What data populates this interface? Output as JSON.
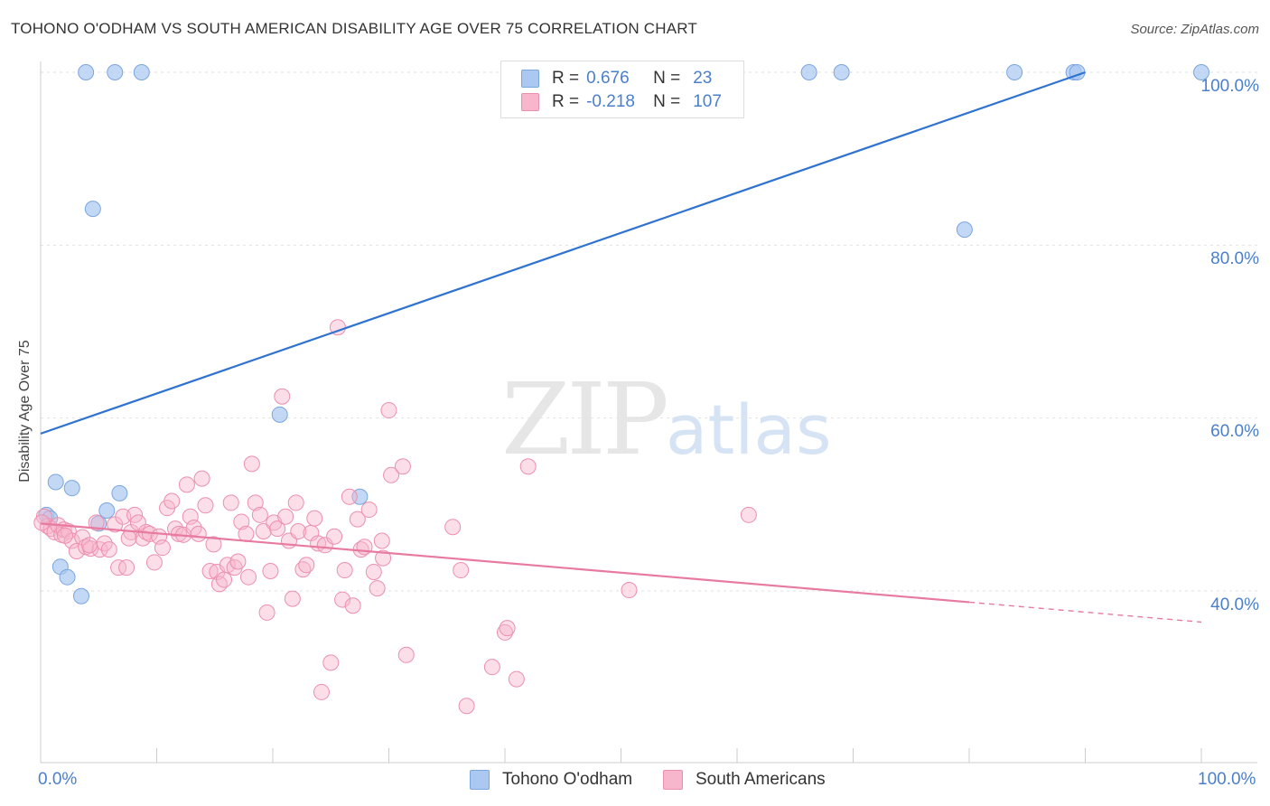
{
  "title": "TOHONO O'ODHAM VS SOUTH AMERICAN DISABILITY AGE OVER 75 CORRELATION CHART",
  "source": "Source: ZipAtlas.com",
  "watermark": {
    "zip": "ZIP",
    "atlas": "atlas"
  },
  "legend": {
    "rows": [
      {
        "r_label": "R =",
        "r_value": "0.676",
        "n_label": "N =",
        "n_value": "23",
        "color": "#aac8f0"
      },
      {
        "r_label": "R =",
        "r_value": "-0.218",
        "n_label": "N =",
        "n_value": "107",
        "color": "#f7b6cb"
      }
    ]
  },
  "chart_data": {
    "type": "scatter",
    "title": "TOHONO O'ODHAM VS SOUTH AMERICAN DISABILITY AGE OVER 75 CORRELATION CHART",
    "ylabel": "Disability Age Over 75",
    "xlabel": "",
    "xlim": [
      0,
      100
    ],
    "ylim": [
      20,
      100
    ],
    "y_ticks": [
      "100.0%",
      "80.0%",
      "60.0%",
      "40.0%"
    ],
    "x_ticks": [
      "0.0%",
      "100.0%"
    ],
    "grid": "horizontal dashed",
    "legend_position": "top-center",
    "series": [
      {
        "name": "Tohono O'odham",
        "color": "#aac8f0",
        "stroke": "#7aa6e0",
        "line_color": "#2f72d0",
        "trend": {
          "x": [
            0,
            90
          ],
          "y": [
            58.2,
            100
          ]
        },
        "points": [
          {
            "x": 3.9,
            "y": 100
          },
          {
            "x": 6.4,
            "y": 100
          },
          {
            "x": 8.7,
            "y": 100
          },
          {
            "x": 66.2,
            "y": 100
          },
          {
            "x": 69.0,
            "y": 100
          },
          {
            "x": 83.9,
            "y": 100
          },
          {
            "x": 89.0,
            "y": 100
          },
          {
            "x": 89.3,
            "y": 100
          },
          {
            "x": 100,
            "y": 100
          },
          {
            "x": 4.5,
            "y": 84.2
          },
          {
            "x": 79.6,
            "y": 81.8
          },
          {
            "x": 20.6,
            "y": 60.4
          },
          {
            "x": 1.3,
            "y": 52.6
          },
          {
            "x": 2.7,
            "y": 51.9
          },
          {
            "x": 6.8,
            "y": 51.3
          },
          {
            "x": 27.5,
            "y": 50.9
          },
          {
            "x": 5.7,
            "y": 49.3
          },
          {
            "x": 0.5,
            "y": 48.8
          },
          {
            "x": 0.8,
            "y": 48.4
          },
          {
            "x": 5.0,
            "y": 47.8
          },
          {
            "x": 1.7,
            "y": 42.8
          },
          {
            "x": 2.3,
            "y": 41.6
          },
          {
            "x": 3.5,
            "y": 39.4
          }
        ]
      },
      {
        "name": "South Americans",
        "color": "#f7b6cb",
        "stroke": "#ec8fae",
        "line_color": "#e87aa0",
        "trend": {
          "x": [
            0,
            80
          ],
          "y": [
            47.8,
            38.7
          ]
        },
        "trend_dashed": {
          "x": [
            80,
            100
          ],
          "y": [
            38.7,
            36.4
          ]
        },
        "points": [
          {
            "x": 0.3,
            "y": 48.6
          },
          {
            "x": 0.6,
            "y": 47.5
          },
          {
            "x": 0.9,
            "y": 47.2
          },
          {
            "x": 1.2,
            "y": 46.8
          },
          {
            "x": 1.5,
            "y": 47.6
          },
          {
            "x": 1.8,
            "y": 46.5
          },
          {
            "x": 2.0,
            "y": 47.1
          },
          {
            "x": 2.4,
            "y": 46.9
          },
          {
            "x": 2.7,
            "y": 45.8
          },
          {
            "x": 3.1,
            "y": 44.6
          },
          {
            "x": 3.6,
            "y": 46.2
          },
          {
            "x": 3.9,
            "y": 45.1
          },
          {
            "x": 4.3,
            "y": 44.9
          },
          {
            "x": 4.8,
            "y": 47.9
          },
          {
            "x": 5.1,
            "y": 44.8
          },
          {
            "x": 5.5,
            "y": 45.5
          },
          {
            "x": 5.9,
            "y": 44.8
          },
          {
            "x": 6.4,
            "y": 47.7
          },
          {
            "x": 6.7,
            "y": 42.7
          },
          {
            "x": 7.1,
            "y": 48.6
          },
          {
            "x": 7.4,
            "y": 42.7
          },
          {
            "x": 7.8,
            "y": 46.8
          },
          {
            "x": 8.1,
            "y": 48.8
          },
          {
            "x": 8.4,
            "y": 47.9
          },
          {
            "x": 8.8,
            "y": 46.1
          },
          {
            "x": 9.1,
            "y": 46.8
          },
          {
            "x": 9.4,
            "y": 46.6
          },
          {
            "x": 9.8,
            "y": 43.3
          },
          {
            "x": 10.2,
            "y": 46.3
          },
          {
            "x": 10.5,
            "y": 45.0
          },
          {
            "x": 10.9,
            "y": 49.6
          },
          {
            "x": 11.3,
            "y": 50.4
          },
          {
            "x": 11.6,
            "y": 47.2
          },
          {
            "x": 11.9,
            "y": 46.6
          },
          {
            "x": 12.3,
            "y": 46.5
          },
          {
            "x": 12.6,
            "y": 52.3
          },
          {
            "x": 12.9,
            "y": 48.6
          },
          {
            "x": 13.2,
            "y": 47.3
          },
          {
            "x": 13.6,
            "y": 46.6
          },
          {
            "x": 13.9,
            "y": 53.0
          },
          {
            "x": 14.2,
            "y": 49.9
          },
          {
            "x": 14.6,
            "y": 42.3
          },
          {
            "x": 14.9,
            "y": 45.4
          },
          {
            "x": 15.2,
            "y": 42.2
          },
          {
            "x": 15.4,
            "y": 40.8
          },
          {
            "x": 15.8,
            "y": 41.3
          },
          {
            "x": 16.1,
            "y": 43.0
          },
          {
            "x": 16.4,
            "y": 50.2
          },
          {
            "x": 16.7,
            "y": 42.7
          },
          {
            "x": 17.0,
            "y": 43.4
          },
          {
            "x": 17.3,
            "y": 48.0
          },
          {
            "x": 17.7,
            "y": 46.6
          },
          {
            "x": 17.9,
            "y": 41.6
          },
          {
            "x": 18.2,
            "y": 54.7
          },
          {
            "x": 18.5,
            "y": 50.2
          },
          {
            "x": 18.9,
            "y": 48.8
          },
          {
            "x": 19.2,
            "y": 46.9
          },
          {
            "x": 19.5,
            "y": 37.5
          },
          {
            "x": 19.8,
            "y": 42.3
          },
          {
            "x": 20.1,
            "y": 47.9
          },
          {
            "x": 20.4,
            "y": 47.2
          },
          {
            "x": 20.8,
            "y": 62.5
          },
          {
            "x": 21.1,
            "y": 48.6
          },
          {
            "x": 21.4,
            "y": 45.8
          },
          {
            "x": 21.7,
            "y": 39.1
          },
          {
            "x": 22.0,
            "y": 50.2
          },
          {
            "x": 22.2,
            "y": 46.9
          },
          {
            "x": 22.6,
            "y": 42.5
          },
          {
            "x": 22.9,
            "y": 43.0
          },
          {
            "x": 23.3,
            "y": 46.7
          },
          {
            "x": 23.6,
            "y": 48.4
          },
          {
            "x": 23.9,
            "y": 45.5
          },
          {
            "x": 24.2,
            "y": 28.3
          },
          {
            "x": 24.5,
            "y": 45.3
          },
          {
            "x": 25.0,
            "y": 31.7
          },
          {
            "x": 25.3,
            "y": 46.3
          },
          {
            "x": 25.6,
            "y": 70.5
          },
          {
            "x": 26.0,
            "y": 39.0
          },
          {
            "x": 26.2,
            "y": 42.4
          },
          {
            "x": 26.6,
            "y": 50.9
          },
          {
            "x": 26.9,
            "y": 38.3
          },
          {
            "x": 27.3,
            "y": 48.3
          },
          {
            "x": 27.6,
            "y": 44.8
          },
          {
            "x": 27.9,
            "y": 45.1
          },
          {
            "x": 28.3,
            "y": 49.4
          },
          {
            "x": 28.7,
            "y": 42.2
          },
          {
            "x": 29.0,
            "y": 40.3
          },
          {
            "x": 29.4,
            "y": 45.8
          },
          {
            "x": 29.5,
            "y": 43.8
          },
          {
            "x": 30.0,
            "y": 60.9
          },
          {
            "x": 30.2,
            "y": 53.4
          },
          {
            "x": 31.2,
            "y": 54.4
          },
          {
            "x": 31.5,
            "y": 32.6
          },
          {
            "x": 35.5,
            "y": 47.4
          },
          {
            "x": 36.2,
            "y": 42.4
          },
          {
            "x": 36.7,
            "y": 26.7
          },
          {
            "x": 38.9,
            "y": 31.2
          },
          {
            "x": 40.0,
            "y": 35.2
          },
          {
            "x": 40.2,
            "y": 35.7
          },
          {
            "x": 41.0,
            "y": 29.8
          },
          {
            "x": 42.0,
            "y": 54.4
          },
          {
            "x": 50.7,
            "y": 40.1
          },
          {
            "x": 61.0,
            "y": 48.8
          },
          {
            "x": 7.6,
            "y": 46.1
          },
          {
            "x": 4.2,
            "y": 45.3
          },
          {
            "x": 0.1,
            "y": 47.9
          },
          {
            "x": 2.1,
            "y": 46.4
          }
        ]
      }
    ]
  },
  "bottom_legend": [
    {
      "label": "Tohono O'odham",
      "color": "#aac8f0"
    },
    {
      "label": "South Americans",
      "color": "#f7b6cb"
    }
  ]
}
